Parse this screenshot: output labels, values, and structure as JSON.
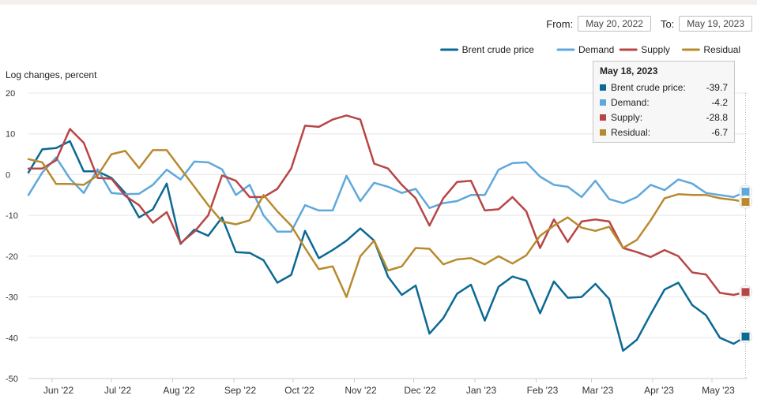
{
  "controls": {
    "from_label": "From:",
    "from_value": "May 20, 2022",
    "to_label": "To:",
    "to_value": "May 19, 2023"
  },
  "tooltip": {
    "date": "May 18, 2023",
    "rows": [
      {
        "label": "Brent crude price:",
        "value": "-39.7",
        "color": "#0b6994"
      },
      {
        "label": "Demand:",
        "value": "-4.2",
        "color": "#5fa8dc"
      },
      {
        "label": "Supply:",
        "value": "-28.8",
        "color": "#b84545"
      },
      {
        "label": "Residual:",
        "value": "-6.7",
        "color": "#b88a2e"
      }
    ]
  },
  "chart_data": {
    "type": "line",
    "ylabel": "Log changes, percent",
    "ylim": [
      -50,
      20
    ],
    "yticks": [
      20,
      10,
      0,
      -10,
      -20,
      -30,
      -40,
      -50
    ],
    "xlim": [
      "2022-05-20",
      "2023-05-19"
    ],
    "month_ticks": [
      {
        "label": "Jun '22",
        "date": "2022-06-01"
      },
      {
        "label": "Jul '22",
        "date": "2022-07-01"
      },
      {
        "label": "Aug '22",
        "date": "2022-08-01"
      },
      {
        "label": "Sep '22",
        "date": "2022-09-01"
      },
      {
        "label": "Oct '22",
        "date": "2022-10-01"
      },
      {
        "label": "Nov '22",
        "date": "2022-11-01"
      },
      {
        "label": "Dec '22",
        "date": "2022-12-01"
      },
      {
        "label": "Jan '23",
        "date": "2023-01-01"
      },
      {
        "label": "Feb '23",
        "date": "2023-02-01"
      },
      {
        "label": "Mar '23",
        "date": "2023-03-01"
      },
      {
        "label": "Apr '23",
        "date": "2023-04-01"
      },
      {
        "label": "May '23",
        "date": "2023-05-01"
      }
    ],
    "grid": "horizontal",
    "legend_position": "top-right",
    "series": [
      {
        "name": "Brent crude price",
        "color": "#0b6994",
        "points": [
          [
            "2022-05-20",
            0.5
          ],
          [
            "2022-05-27",
            6.2
          ],
          [
            "2022-06-03",
            6.5
          ],
          [
            "2022-06-10",
            8.2
          ],
          [
            "2022-06-17",
            0.8
          ],
          [
            "2022-06-24",
            0.8
          ],
          [
            "2022-07-01",
            -0.8
          ],
          [
            "2022-07-08",
            -4.5
          ],
          [
            "2022-07-15",
            -10.5
          ],
          [
            "2022-07-22",
            -8.5
          ],
          [
            "2022-07-29",
            -2.2
          ],
          [
            "2022-08-05",
            -17
          ],
          [
            "2022-08-12",
            -13.5
          ],
          [
            "2022-08-19",
            -15
          ],
          [
            "2022-08-26",
            -10.5
          ],
          [
            "2022-09-02",
            -19
          ],
          [
            "2022-09-09",
            -19.2
          ],
          [
            "2022-09-16",
            -21
          ],
          [
            "2022-09-23",
            -26.5
          ],
          [
            "2022-09-30",
            -24.6
          ],
          [
            "2022-10-07",
            -13.8
          ],
          [
            "2022-10-14",
            -20.5
          ],
          [
            "2022-10-21",
            -18.5
          ],
          [
            "2022-10-28",
            -16.2
          ],
          [
            "2022-11-04",
            -13.2
          ],
          [
            "2022-11-11",
            -16.2
          ],
          [
            "2022-11-18",
            -25
          ],
          [
            "2022-11-25",
            -29.5
          ],
          [
            "2022-12-02",
            -27.2
          ],
          [
            "2022-12-09",
            -39
          ],
          [
            "2022-12-16",
            -35.2
          ],
          [
            "2022-12-23",
            -29.2
          ],
          [
            "2022-12-30",
            -27
          ],
          [
            "2023-01-06",
            -35.8
          ],
          [
            "2023-01-13",
            -27.5
          ],
          [
            "2023-01-20",
            -25
          ],
          [
            "2023-01-27",
            -26
          ],
          [
            "2023-02-03",
            -34
          ],
          [
            "2023-02-10",
            -26.2
          ],
          [
            "2023-02-17",
            -30.2
          ],
          [
            "2023-02-24",
            -30
          ],
          [
            "2023-03-03",
            -26.8
          ],
          [
            "2023-03-10",
            -30.5
          ],
          [
            "2023-03-17",
            -43.2
          ],
          [
            "2023-03-24",
            -40.5
          ],
          [
            "2023-03-31",
            -34.2
          ],
          [
            "2023-04-07",
            -28.2
          ],
          [
            "2023-04-14",
            -26.5
          ],
          [
            "2023-04-21",
            -32
          ],
          [
            "2023-04-28",
            -34.5
          ],
          [
            "2023-05-05",
            -40
          ],
          [
            "2023-05-12",
            -41.5
          ],
          [
            "2023-05-18",
            -39.7
          ]
        ]
      },
      {
        "name": "Demand",
        "color": "#5fa8dc",
        "points": [
          [
            "2022-05-20",
            -5
          ],
          [
            "2022-05-27",
            0.5
          ],
          [
            "2022-06-03",
            4.2
          ],
          [
            "2022-06-10",
            -1
          ],
          [
            "2022-06-17",
            -4.5
          ],
          [
            "2022-06-24",
            1.3
          ],
          [
            "2022-07-01",
            -4.5
          ],
          [
            "2022-07-08",
            -4.8
          ],
          [
            "2022-07-15",
            -4.7
          ],
          [
            "2022-07-22",
            -2.5
          ],
          [
            "2022-07-29",
            1.2
          ],
          [
            "2022-08-05",
            -1.2
          ],
          [
            "2022-08-12",
            3.2
          ],
          [
            "2022-08-19",
            3
          ],
          [
            "2022-08-26",
            1.3
          ],
          [
            "2022-09-02",
            -5
          ],
          [
            "2022-09-09",
            -2.5
          ],
          [
            "2022-09-16",
            -10
          ],
          [
            "2022-09-23",
            -14
          ],
          [
            "2022-09-30",
            -14
          ],
          [
            "2022-10-07",
            -7.5
          ],
          [
            "2022-10-14",
            -8.8
          ],
          [
            "2022-10-21",
            -8.8
          ],
          [
            "2022-10-28",
            -0.3
          ],
          [
            "2022-11-04",
            -6.5
          ],
          [
            "2022-11-11",
            -2
          ],
          [
            "2022-11-18",
            -3
          ],
          [
            "2022-11-25",
            -4.5
          ],
          [
            "2022-12-02",
            -3.5
          ],
          [
            "2022-12-09",
            -8.2
          ],
          [
            "2022-12-16",
            -7
          ],
          [
            "2022-12-23",
            -6.5
          ],
          [
            "2022-12-30",
            -5
          ],
          [
            "2023-01-06",
            -5
          ],
          [
            "2023-01-13",
            1.2
          ],
          [
            "2023-01-20",
            2.8
          ],
          [
            "2023-01-27",
            3
          ],
          [
            "2023-02-03",
            -0.5
          ],
          [
            "2023-02-10",
            -2.5
          ],
          [
            "2023-02-17",
            -3
          ],
          [
            "2023-02-24",
            -5.5
          ],
          [
            "2023-03-03",
            -1.5
          ],
          [
            "2023-03-10",
            -6
          ],
          [
            "2023-03-17",
            -7
          ],
          [
            "2023-03-24",
            -5.5
          ],
          [
            "2023-03-31",
            -2.5
          ],
          [
            "2023-04-07",
            -3.8
          ],
          [
            "2023-04-14",
            -1.2
          ],
          [
            "2023-04-21",
            -2.2
          ],
          [
            "2023-04-28",
            -4.5
          ],
          [
            "2023-05-05",
            -5
          ],
          [
            "2023-05-12",
            -5.5
          ],
          [
            "2023-05-18",
            -4.2
          ]
        ]
      },
      {
        "name": "Supply",
        "color": "#b84545",
        "points": [
          [
            "2022-05-20",
            1.5
          ],
          [
            "2022-05-27",
            1.5
          ],
          [
            "2022-06-03",
            3.5
          ],
          [
            "2022-06-10",
            11.2
          ],
          [
            "2022-06-17",
            7.8
          ],
          [
            "2022-06-24",
            -0.8
          ],
          [
            "2022-07-01",
            -1
          ],
          [
            "2022-07-08",
            -5.2
          ],
          [
            "2022-07-15",
            -7.5
          ],
          [
            "2022-07-22",
            -11.8
          ],
          [
            "2022-07-29",
            -9.2
          ],
          [
            "2022-08-05",
            -16.8
          ],
          [
            "2022-08-12",
            -14
          ],
          [
            "2022-08-19",
            -10
          ],
          [
            "2022-08-26",
            -0.2
          ],
          [
            "2022-09-02",
            -1.5
          ],
          [
            "2022-09-09",
            -5.5
          ],
          [
            "2022-09-16",
            -5.5
          ],
          [
            "2022-09-23",
            -3.5
          ],
          [
            "2022-09-30",
            1.5
          ],
          [
            "2022-10-07",
            12
          ],
          [
            "2022-10-14",
            11.7
          ],
          [
            "2022-10-21",
            13.5
          ],
          [
            "2022-10-28",
            14.5
          ],
          [
            "2022-11-04",
            13.5
          ],
          [
            "2022-11-11",
            2.7
          ],
          [
            "2022-11-18",
            1.5
          ],
          [
            "2022-11-25",
            -2.5
          ],
          [
            "2022-12-02",
            -5.8
          ],
          [
            "2022-12-09",
            -12.5
          ],
          [
            "2022-12-16",
            -5.8
          ],
          [
            "2022-12-23",
            -1.8
          ],
          [
            "2022-12-30",
            -1.5
          ],
          [
            "2023-01-06",
            -8.8
          ],
          [
            "2023-01-13",
            -8.5
          ],
          [
            "2023-01-20",
            -5.5
          ],
          [
            "2023-01-27",
            -9
          ],
          [
            "2023-02-03",
            -18
          ],
          [
            "2023-02-10",
            -11
          ],
          [
            "2023-02-17",
            -16.5
          ],
          [
            "2023-02-24",
            -11.5
          ],
          [
            "2023-03-03",
            -11
          ],
          [
            "2023-03-10",
            -11.5
          ],
          [
            "2023-03-17",
            -18
          ],
          [
            "2023-03-24",
            -19
          ],
          [
            "2023-03-31",
            -20.2
          ],
          [
            "2023-04-07",
            -18.5
          ],
          [
            "2023-04-14",
            -20
          ],
          [
            "2023-04-21",
            -24
          ],
          [
            "2023-04-28",
            -24.5
          ],
          [
            "2023-05-05",
            -29
          ],
          [
            "2023-05-12",
            -29.5
          ],
          [
            "2023-05-18",
            -28.8
          ]
        ]
      },
      {
        "name": "Residual",
        "color": "#b88a2e",
        "points": [
          [
            "2022-05-20",
            3.8
          ],
          [
            "2022-05-27",
            3
          ],
          [
            "2022-06-03",
            -2.3
          ],
          [
            "2022-06-10",
            -2.3
          ],
          [
            "2022-06-17",
            -2.5
          ],
          [
            "2022-06-24",
            -0.2
          ],
          [
            "2022-07-01",
            5
          ],
          [
            "2022-07-08",
            5.8
          ],
          [
            "2022-07-15",
            1.6
          ],
          [
            "2022-07-22",
            6
          ],
          [
            "2022-07-29",
            6
          ],
          [
            "2022-08-05",
            1.5
          ],
          [
            "2022-08-12",
            -3
          ],
          [
            "2022-08-19",
            -7.5
          ],
          [
            "2022-08-26",
            -11.5
          ],
          [
            "2022-09-02",
            -12.2
          ],
          [
            "2022-09-09",
            -11.2
          ],
          [
            "2022-09-16",
            -5
          ],
          [
            "2022-09-23",
            -9
          ],
          [
            "2022-09-30",
            -12.5
          ],
          [
            "2022-10-07",
            -18
          ],
          [
            "2022-10-14",
            -23.2
          ],
          [
            "2022-10-21",
            -22.5
          ],
          [
            "2022-10-28",
            -30
          ],
          [
            "2022-11-04",
            -20
          ],
          [
            "2022-11-11",
            -16.2
          ],
          [
            "2022-11-18",
            -23.5
          ],
          [
            "2022-11-25",
            -22.5
          ],
          [
            "2022-12-02",
            -18
          ],
          [
            "2022-12-09",
            -18.2
          ],
          [
            "2022-12-16",
            -22
          ],
          [
            "2022-12-23",
            -20.8
          ],
          [
            "2022-12-30",
            -20.5
          ],
          [
            "2023-01-06",
            -22
          ],
          [
            "2023-01-13",
            -20
          ],
          [
            "2023-01-20",
            -21.8
          ],
          [
            "2023-01-27",
            -19.8
          ],
          [
            "2023-02-03",
            -15
          ],
          [
            "2023-02-10",
            -12.5
          ],
          [
            "2023-02-17",
            -10.5
          ],
          [
            "2023-02-24",
            -13
          ],
          [
            "2023-03-03",
            -13.8
          ],
          [
            "2023-03-10",
            -12.8
          ],
          [
            "2023-03-17",
            -18
          ],
          [
            "2023-03-24",
            -16
          ],
          [
            "2023-03-31",
            -11.2
          ],
          [
            "2023-04-07",
            -5.8
          ],
          [
            "2023-04-14",
            -4.8
          ],
          [
            "2023-04-21",
            -5
          ],
          [
            "2023-04-28",
            -5
          ],
          [
            "2023-05-05",
            -5.8
          ],
          [
            "2023-05-12",
            -6.2
          ],
          [
            "2023-05-18",
            -6.7
          ]
        ]
      }
    ]
  }
}
